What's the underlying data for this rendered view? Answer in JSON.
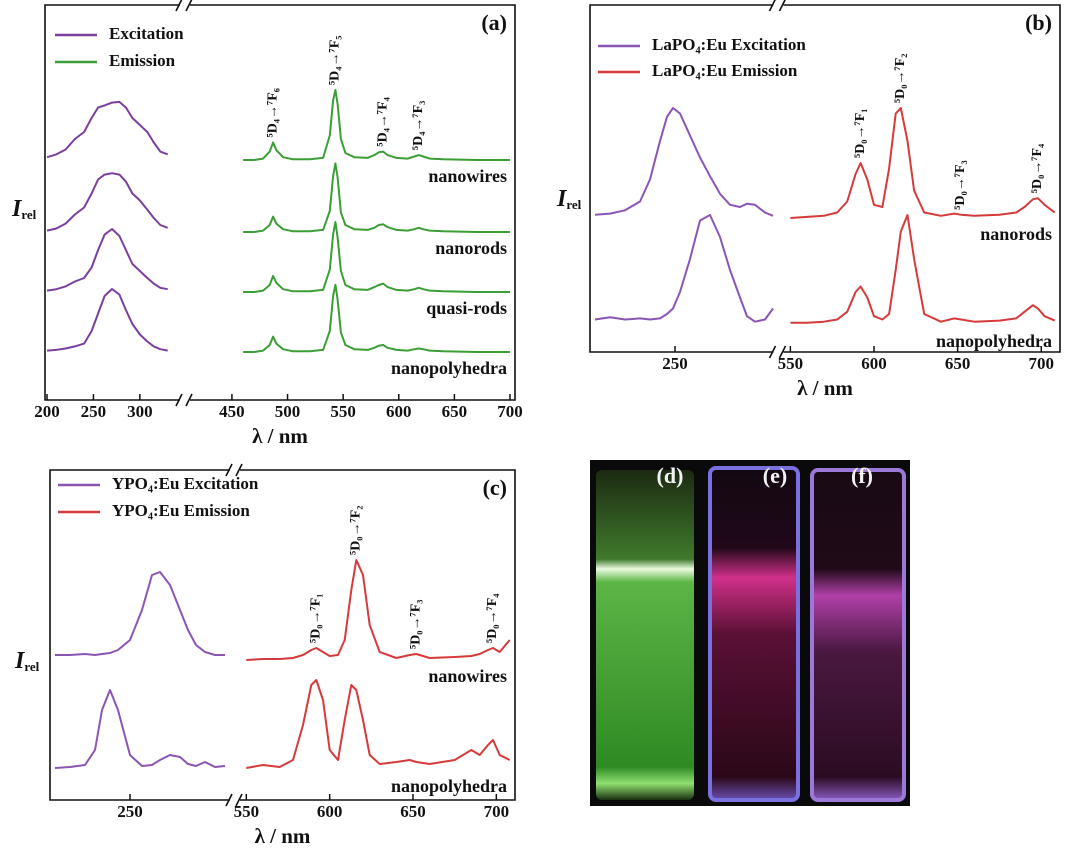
{
  "chart_data": [
    {
      "type": "line",
      "panel_label": "(a)",
      "xlabel": "λ / nm",
      "ylabel": "I",
      "ylabel_sub": "rel",
      "xlim": [
        200,
        700
      ],
      "xbreak": [
        340,
        415
      ],
      "xticks": [
        200,
        250,
        300,
        450,
        500,
        550,
        600,
        650,
        700
      ],
      "legend": [
        "Excitation",
        "Emission"
      ],
      "excitation_color": "#7b3f9e",
      "emission_color": "#3c9e36",
      "excitation_x": [
        200,
        210,
        220,
        230,
        240,
        248,
        255,
        262,
        270,
        278,
        285,
        292,
        300,
        308,
        315,
        322,
        330
      ],
      "emission_x": [
        460,
        470,
        478,
        484,
        487,
        490,
        496,
        505,
        520,
        532,
        538,
        541,
        543,
        545,
        548,
        552,
        560,
        572,
        578,
        582,
        586,
        590,
        598,
        608,
        614,
        618,
        622,
        628,
        640,
        670,
        700
      ],
      "annotations": [
        {
          "text": "⁵D₄→⁷F₆",
          "x": 487
        },
        {
          "text": "⁵D₄→⁷F₅",
          "x": 543
        },
        {
          "text": "⁵D₄→⁷F₄",
          "x": 586
        },
        {
          "text": "⁵D₄→⁷F₃",
          "x": 618
        }
      ],
      "groups": [
        {
          "label": "nanowires",
          "excitation": [
            0.04,
            0.08,
            0.15,
            0.3,
            0.4,
            0.6,
            0.75,
            0.78,
            0.82,
            0.83,
            0.75,
            0.6,
            0.5,
            0.4,
            0.25,
            0.12,
            0.08
          ],
          "emission": [
            0,
            0,
            0.02,
            0.12,
            0.25,
            0.14,
            0.04,
            0.01,
            0.01,
            0.03,
            0.35,
            0.85,
            1.0,
            0.8,
            0.3,
            0.1,
            0.04,
            0.03,
            0.07,
            0.11,
            0.12,
            0.07,
            0.03,
            0.02,
            0.05,
            0.07,
            0.05,
            0.02,
            0.01,
            0,
            0
          ]
        },
        {
          "label": "nanorods",
          "excitation": [
            0.02,
            0.05,
            0.12,
            0.25,
            0.35,
            0.55,
            0.75,
            0.82,
            0.84,
            0.82,
            0.72,
            0.55,
            0.45,
            0.32,
            0.2,
            0.1,
            0.06
          ],
          "emission": [
            0,
            0,
            0.02,
            0.1,
            0.22,
            0.12,
            0.04,
            0.01,
            0.01,
            0.03,
            0.3,
            0.8,
            0.98,
            0.78,
            0.28,
            0.1,
            0.04,
            0.03,
            0.06,
            0.1,
            0.11,
            0.07,
            0.03,
            0.02,
            0.04,
            0.06,
            0.04,
            0.02,
            0.01,
            0,
            0
          ]
        },
        {
          "label": "quasi-rods",
          "excitation": [
            0.02,
            0.04,
            0.08,
            0.15,
            0.2,
            0.35,
            0.6,
            0.82,
            0.9,
            0.8,
            0.6,
            0.4,
            0.3,
            0.2,
            0.12,
            0.06,
            0.04
          ],
          "emission": [
            0,
            0,
            0.02,
            0.1,
            0.23,
            0.13,
            0.04,
            0.01,
            0.01,
            0.03,
            0.32,
            0.82,
            1.0,
            0.78,
            0.3,
            0.1,
            0.04,
            0.03,
            0.07,
            0.1,
            0.12,
            0.07,
            0.03,
            0.02,
            0.04,
            0.06,
            0.04,
            0.02,
            0.01,
            0,
            0
          ]
        },
        {
          "label": "nanopolyhedra",
          "excitation": [
            0.02,
            0.03,
            0.05,
            0.08,
            0.12,
            0.3,
            0.55,
            0.8,
            0.9,
            0.82,
            0.6,
            0.4,
            0.25,
            0.15,
            0.08,
            0.04,
            0.02
          ],
          "emission": [
            0,
            0,
            0.02,
            0.1,
            0.22,
            0.12,
            0.04,
            0.01,
            0.01,
            0.03,
            0.3,
            0.8,
            0.96,
            0.75,
            0.28,
            0.1,
            0.04,
            0.03,
            0.06,
            0.09,
            0.1,
            0.06,
            0.03,
            0.02,
            0.04,
            0.05,
            0.04,
            0.02,
            0.01,
            0,
            0
          ]
        }
      ]
    },
    {
      "type": "line",
      "panel_label": "(b)",
      "xlabel": "λ / nm",
      "ylabel": "I",
      "ylabel_sub": "rel",
      "xlim": [
        165,
        710
      ],
      "xbreak": [
        350,
        545
      ],
      "xticks": [
        250,
        550,
        600,
        650,
        700
      ],
      "legend": [
        "LaPO₄:Eu Excitation",
        "LaPO₄:Eu Emission"
      ],
      "excitation_color": "#8a55b3",
      "emission_color": "#d63a3a",
      "excitation_x": [
        170,
        185,
        200,
        215,
        225,
        235,
        242,
        248,
        255,
        265,
        275,
        285,
        295,
        305,
        315,
        322,
        330,
        340,
        348
      ],
      "emission_x": [
        550,
        560,
        570,
        578,
        584,
        589,
        592,
        596,
        600,
        605,
        609,
        613,
        616,
        620,
        624,
        630,
        640,
        648,
        652,
        660,
        675,
        685,
        690,
        695,
        698,
        702,
        708
      ],
      "annotations": [
        {
          "text": "⁵D₀→⁷F₁",
          "x": 592
        },
        {
          "text": "⁵D₀→⁷F₂",
          "x": 616
        },
        {
          "text": "⁵D₀→⁷F₃",
          "x": 652
        },
        {
          "text": "⁵D₀→⁷F₄",
          "x": 698
        }
      ],
      "groups": [
        {
          "label": "nanorods",
          "excitation": [
            0.03,
            0.04,
            0.07,
            0.15,
            0.35,
            0.7,
            0.92,
            1.0,
            0.95,
            0.75,
            0.55,
            0.38,
            0.22,
            0.12,
            0.1,
            0.13,
            0.12,
            0.05,
            0.02
          ],
          "emission": [
            0,
            0.01,
            0.02,
            0.05,
            0.15,
            0.4,
            0.5,
            0.35,
            0.12,
            0.1,
            0.45,
            0.95,
            1.0,
            0.7,
            0.25,
            0.05,
            0.02,
            0.04,
            0.03,
            0.02,
            0.03,
            0.05,
            0.1,
            0.17,
            0.18,
            0.12,
            0.05
          ]
        },
        {
          "label": "nanopolyhedra",
          "excitation": [
            0.05,
            0.07,
            0.05,
            0.06,
            0.05,
            0.06,
            0.1,
            0.15,
            0.3,
            0.6,
            0.95,
            1.0,
            0.8,
            0.5,
            0.25,
            0.08,
            0.03,
            0.05,
            0.15
          ],
          "emission": [
            0.02,
            0.02,
            0.03,
            0.05,
            0.12,
            0.3,
            0.35,
            0.25,
            0.08,
            0.05,
            0.1,
            0.5,
            0.85,
            1.0,
            0.6,
            0.1,
            0.03,
            0.06,
            0.05,
            0.03,
            0.04,
            0.06,
            0.12,
            0.18,
            0.15,
            0.08,
            0.04
          ]
        }
      ]
    },
    {
      "type": "line",
      "panel_label": "(c)",
      "xlabel": "λ / nm",
      "ylabel": "I",
      "ylabel_sub": "rel",
      "xlim": [
        172,
        710
      ],
      "xbreak": [
        352,
        545
      ],
      "xticks": [
        250,
        550,
        600,
        650,
        700
      ],
      "legend": [
        "YPO₄:Eu Excitation",
        "YPO₄:Eu Emission"
      ],
      "excitation_color": "#8a55b3",
      "emission_color": "#d63a3a",
      "excitation_x": [
        175,
        190,
        205,
        215,
        222,
        230,
        238,
        250,
        262,
        272,
        280,
        290,
        300,
        308,
        316,
        325,
        335,
        345
      ],
      "emission_x": [
        550,
        560,
        570,
        578,
        584,
        589,
        592,
        596,
        600,
        605,
        609,
        613,
        616,
        620,
        624,
        630,
        640,
        648,
        652,
        660,
        675,
        685,
        690,
        695,
        698,
        702,
        708
      ],
      "annotations": [
        {
          "text": "⁵D₀→⁷F₁",
          "x": 592
        },
        {
          "text": "⁵D₀→⁷F₂",
          "x": 616
        },
        {
          "text": "⁵D₀→⁷F₃",
          "x": 652
        },
        {
          "text": "⁵D₀→⁷F₄",
          "x": 698
        }
      ],
      "groups": [
        {
          "label": "nanowires",
          "excitation": [
            0.05,
            0.05,
            0.06,
            0.05,
            0.06,
            0.07,
            0.1,
            0.2,
            0.5,
            0.85,
            0.88,
            0.75,
            0.5,
            0.3,
            0.15,
            0.08,
            0.05,
            0.05
          ],
          "emission": [
            0,
            0.01,
            0.01,
            0.02,
            0.05,
            0.1,
            0.12,
            0.08,
            0.04,
            0.05,
            0.2,
            0.7,
            1.0,
            0.85,
            0.35,
            0.08,
            0.02,
            0.05,
            0.06,
            0.02,
            0.03,
            0.04,
            0.06,
            0.1,
            0.12,
            0.08,
            0.2
          ]
        },
        {
          "label": "nanopolyhedra",
          "excitation": [
            0.02,
            0.03,
            0.05,
            0.2,
            0.6,
            0.8,
            0.6,
            0.15,
            0.04,
            0.05,
            0.1,
            0.15,
            0.13,
            0.06,
            0.04,
            0.08,
            0.03,
            0.04
          ],
          "emission": [
            0.02,
            0.05,
            0.03,
            0.1,
            0.45,
            0.85,
            0.9,
            0.7,
            0.2,
            0.1,
            0.5,
            0.85,
            0.8,
            0.5,
            0.15,
            0.06,
            0.08,
            0.1,
            0.08,
            0.06,
            0.1,
            0.2,
            0.15,
            0.25,
            0.3,
            0.15,
            0.1
          ]
        }
      ]
    }
  ],
  "photo_labels": [
    "(d)",
    "(e)",
    "(f)"
  ]
}
